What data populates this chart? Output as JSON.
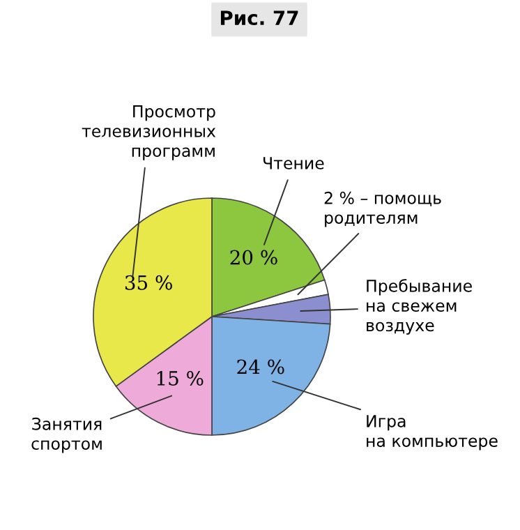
{
  "chart_data": {
    "type": "pie",
    "title": "Рис. 77",
    "categories": [
      "Чтение",
      "2 % – помощь\nродителям",
      "Пребывание\nна свежем\nвоздухе",
      "Игра\nна компьютере",
      "Занятия\nспортом",
      "Просмотр\nтелевизионных\nпрограмм"
    ],
    "values": [
      20,
      2,
      4,
      24,
      15,
      35
    ],
    "value_labels": [
      "20 %",
      null,
      null,
      "24 %",
      "15 %",
      "35 %"
    ],
    "colors": [
      "#8dc63f",
      "#ffffff",
      "#8b8fd0",
      "#7fb2e5",
      "#eeaad8",
      "#e8e84a"
    ]
  }
}
